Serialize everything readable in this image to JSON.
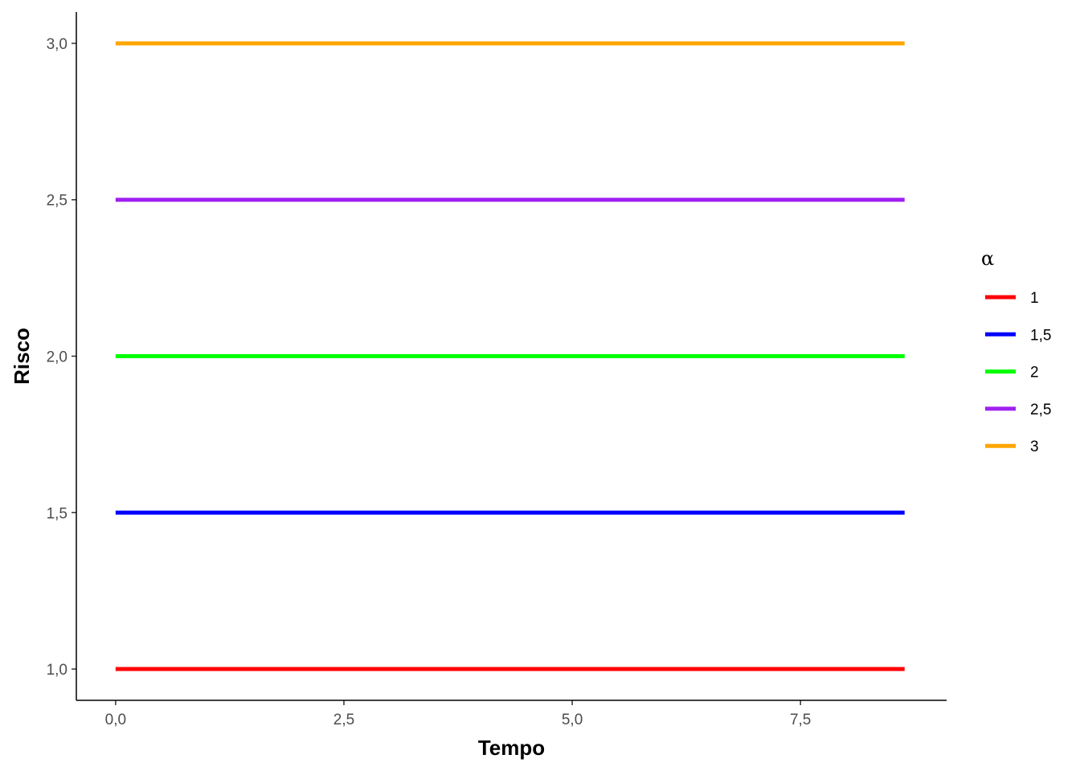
{
  "chart_data": {
    "type": "line",
    "xlabel": "Tempo",
    "ylabel": "Risco",
    "xlim": [
      -0.43,
      9.1
    ],
    "ylim": [
      0.9,
      3.1
    ],
    "x_ticks": [
      0.0,
      2.5,
      5.0,
      7.5
    ],
    "x_tick_labels": [
      "0,0",
      "2,5",
      "5,0",
      "7,5"
    ],
    "y_ticks": [
      1.0,
      1.5,
      2.0,
      2.5,
      3.0
    ],
    "y_tick_labels": [
      "1,0",
      "1,5",
      "2,0",
      "2,5",
      "3,0"
    ],
    "grid": false,
    "legend": {
      "title": "α",
      "position": "right"
    },
    "series": [
      {
        "name": "1",
        "color": "#ff0000",
        "x": [
          0.0,
          8.64
        ],
        "y": [
          1.0,
          1.0
        ]
      },
      {
        "name": "1,5",
        "color": "#0000ff",
        "x": [
          0.0,
          8.64
        ],
        "y": [
          1.5,
          1.5
        ]
      },
      {
        "name": "2",
        "color": "#00ff00",
        "x": [
          0.0,
          8.64
        ],
        "y": [
          2.0,
          2.0
        ]
      },
      {
        "name": "2,5",
        "color": "#a020f0",
        "x": [
          0.0,
          8.64
        ],
        "y": [
          2.5,
          2.5
        ]
      },
      {
        "name": "3",
        "color": "#ffa500",
        "x": [
          0.0,
          8.64
        ],
        "y": [
          3.0,
          3.0
        ]
      }
    ]
  }
}
